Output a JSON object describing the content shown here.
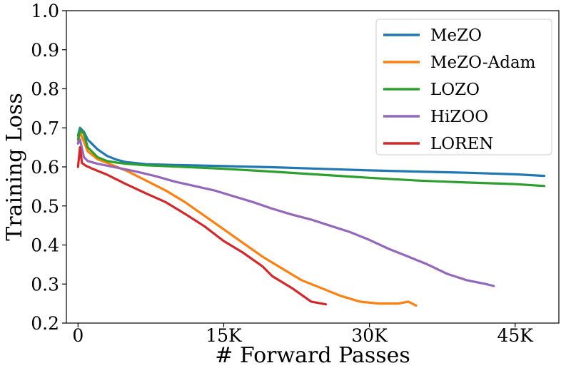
{
  "chart_data": {
    "type": "line",
    "title": "",
    "xlabel": "# Forward Passes",
    "ylabel": "Training Loss",
    "xlim": [
      -1200,
      49500
    ],
    "ylim": [
      0.2,
      1.0
    ],
    "x_ticks": [
      0,
      15000,
      30000,
      45000
    ],
    "x_tick_labels": [
      "0",
      "15K",
      "30K",
      "45K"
    ],
    "y_ticks": [
      0.2,
      0.3,
      0.4,
      0.5,
      0.6,
      0.7,
      0.8,
      0.9,
      1.0
    ],
    "y_tick_labels": [
      "0.2",
      "0.3",
      "0.4",
      "0.5",
      "0.6",
      "0.7",
      "0.8",
      "0.9",
      "1.0"
    ],
    "grid": false,
    "legend_position": "top-right",
    "series": [
      {
        "name": "MeZO",
        "color": "#1f77b4",
        "x": [
          0,
          200,
          600,
          1000,
          2000,
          3000,
          4000,
          5000,
          7000,
          10000,
          15000,
          20000,
          25000,
          30000,
          35000,
          40000,
          45000,
          48000
        ],
        "y": [
          0.68,
          0.7,
          0.69,
          0.67,
          0.645,
          0.628,
          0.618,
          0.612,
          0.607,
          0.605,
          0.602,
          0.599,
          0.595,
          0.591,
          0.588,
          0.585,
          0.581,
          0.577
        ]
      },
      {
        "name": "MeZO-Adam",
        "color": "#ff7f0e",
        "x": [
          0,
          200,
          600,
          1000,
          2000,
          3000,
          4000,
          5000,
          7000,
          9000,
          11000,
          13000,
          15000,
          17000,
          19000,
          21000,
          23000,
          25000,
          27000,
          29000,
          31000,
          33000,
          34000,
          34800
        ],
        "y": [
          0.66,
          0.69,
          0.665,
          0.64,
          0.62,
          0.61,
          0.6,
          0.59,
          0.565,
          0.54,
          0.51,
          0.475,
          0.44,
          0.405,
          0.37,
          0.34,
          0.31,
          0.29,
          0.27,
          0.255,
          0.25,
          0.25,
          0.255,
          0.245
        ]
      },
      {
        "name": "LOZO",
        "color": "#2ca02c",
        "x": [
          0,
          200,
          600,
          1000,
          2000,
          3000,
          4000,
          5000,
          7000,
          10000,
          15000,
          20000,
          25000,
          30000,
          35000,
          40000,
          45000,
          48000
        ],
        "y": [
          0.67,
          0.695,
          0.685,
          0.65,
          0.625,
          0.615,
          0.611,
          0.608,
          0.604,
          0.601,
          0.595,
          0.588,
          0.58,
          0.572,
          0.565,
          0.56,
          0.556,
          0.551
        ]
      },
      {
        "name": "HiZOO",
        "color": "#9467bd",
        "x": [
          0,
          200,
          600,
          1000,
          2000,
          4000,
          6000,
          8000,
          10000,
          12000,
          14000,
          16000,
          18000,
          20000,
          22000,
          24000,
          26000,
          28000,
          30000,
          32000,
          34000,
          36000,
          38000,
          40000,
          42000,
          42800
        ],
        "y": [
          0.66,
          0.67,
          0.625,
          0.615,
          0.608,
          0.598,
          0.588,
          0.576,
          0.562,
          0.551,
          0.54,
          0.525,
          0.51,
          0.493,
          0.478,
          0.465,
          0.449,
          0.433,
          0.413,
          0.39,
          0.37,
          0.35,
          0.326,
          0.31,
          0.3,
          0.295
        ]
      },
      {
        "name": "LOREN",
        "color": "#d62728",
        "x": [
          0,
          200,
          400,
          800,
          1500,
          3000,
          5000,
          7000,
          9000,
          11000,
          13000,
          15000,
          17000,
          19000,
          20000,
          22000,
          24000,
          25500
        ],
        "y": [
          0.6,
          0.65,
          0.61,
          0.603,
          0.595,
          0.58,
          0.555,
          0.532,
          0.51,
          0.48,
          0.448,
          0.41,
          0.38,
          0.345,
          0.32,
          0.29,
          0.255,
          0.248
        ]
      }
    ]
  }
}
